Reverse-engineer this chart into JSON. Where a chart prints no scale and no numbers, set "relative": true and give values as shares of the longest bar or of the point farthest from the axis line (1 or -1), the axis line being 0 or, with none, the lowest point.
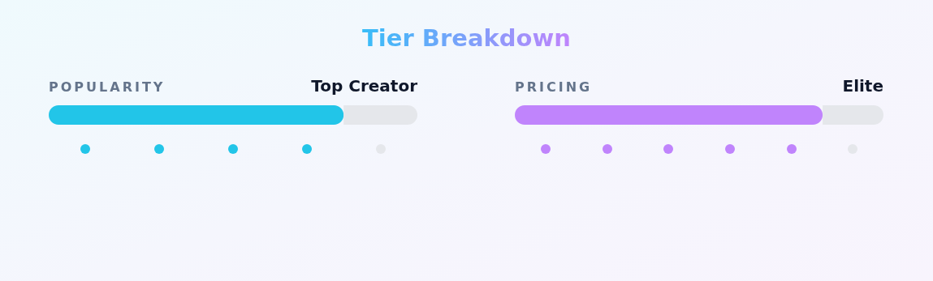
{
  "chart_data": [
    {
      "type": "other",
      "title": "Tier Breakdown"
    },
    {
      "type": "bar",
      "orientation": "horizontal",
      "stacked": true,
      "relative": true,
      "title": "POPULARITY",
      "annotations": [
        "Top Creator"
      ],
      "categories": [
        null
      ],
      "series": [
        {
          "color": "#22c5e8",
          "values": [
            0.8
          ]
        },
        {
          "color": "#e5e7eb",
          "values": [
            0.2
          ]
        }
      ]
    },
    {
      "type": "other",
      "colors": [
        "#22c5e8",
        "#22c5e8",
        "#22c5e8",
        "#22c5e8",
        "#e5e7eb"
      ]
    },
    {
      "type": "bar",
      "orientation": "horizontal",
      "stacked": true,
      "relative": true,
      "title": "PRICING",
      "annotations": [
        "Elite"
      ],
      "categories": [
        null
      ],
      "series": [
        {
          "color": "#c084fc",
          "values": [
            0.835
          ]
        },
        {
          "color": "#e5e7eb",
          "values": [
            0.165
          ]
        }
      ]
    },
    {
      "type": "other",
      "colors": [
        "#c084fc",
        "#c084fc",
        "#c084fc",
        "#c084fc",
        "#c084fc",
        "#e5e7eb"
      ]
    }
  ]
}
